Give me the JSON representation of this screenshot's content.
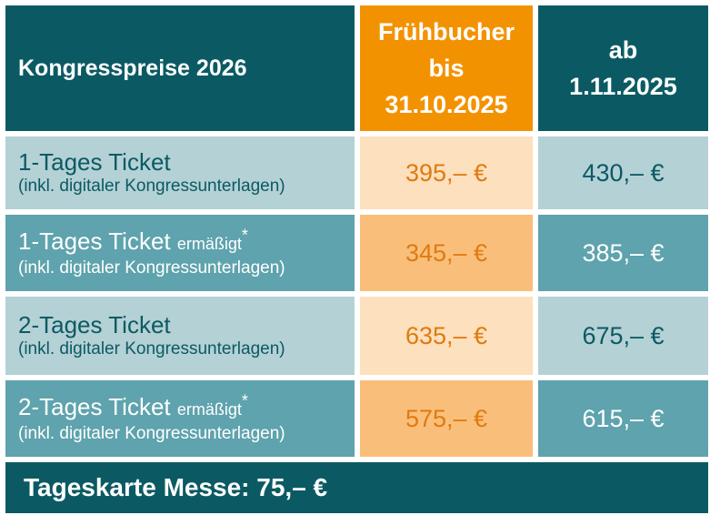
{
  "header": {
    "title": "Kongresspreise 2026",
    "early_line1": "Frühbucher",
    "early_line2": "bis",
    "early_line3": "31.10.2025",
    "late_line1": "ab",
    "late_line2": "1.11.2025"
  },
  "rows": [
    {
      "main": "1-Tages Ticket",
      "suffix": "",
      "star": "",
      "sub": "(inkl. digitaler Kongressunterlagen)",
      "early": "395,– €",
      "late": "430,– €"
    },
    {
      "main": "1-Tages Ticket",
      "suffix": "ermäßigt",
      "star": "*",
      "sub": "(inkl. digitaler Kongressunterlagen)",
      "early": "345,– €",
      "late": "385,– €"
    },
    {
      "main": "2-Tages Ticket",
      "suffix": "",
      "star": "",
      "sub": "(inkl. digitaler Kongressunterlagen)",
      "early": "635,– €",
      "late": "675,– €"
    },
    {
      "main": "2-Tages Ticket",
      "suffix": "ermäßigt",
      "star": "*",
      "sub": "(inkl. digitaler Kongressunterlagen)",
      "early": "575,– €",
      "late": "615,– €"
    }
  ],
  "footer": {
    "text": "Tageskarte Messe: 75,– €"
  },
  "colors": {
    "dark_teal": "#0b5a63",
    "orange": "#f39200",
    "light_teal": "#b4d1d6",
    "mid_teal": "#5ea3ad",
    "light_orange": "#fde0bd",
    "mid_orange": "#f9bf7a"
  }
}
